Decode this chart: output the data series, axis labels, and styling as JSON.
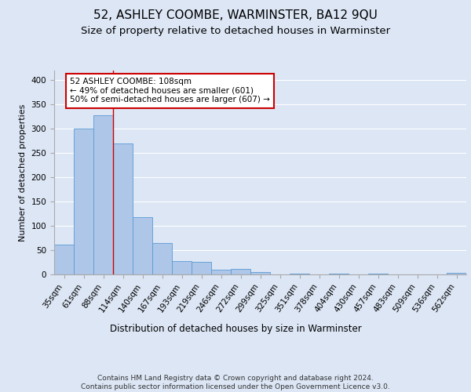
{
  "title": "52, ASHLEY COOMBE, WARMINSTER, BA12 9QU",
  "subtitle": "Size of property relative to detached houses in Warminster",
  "xlabel": "Distribution of detached houses by size in Warminster",
  "ylabel": "Number of detached properties",
  "categories": [
    "35sqm",
    "61sqm",
    "88sqm",
    "114sqm",
    "140sqm",
    "167sqm",
    "193sqm",
    "219sqm",
    "246sqm",
    "272sqm",
    "299sqm",
    "325sqm",
    "351sqm",
    "378sqm",
    "404sqm",
    "430sqm",
    "457sqm",
    "483sqm",
    "509sqm",
    "536sqm",
    "562sqm"
  ],
  "values": [
    62,
    301,
    328,
    270,
    118,
    65,
    28,
    26,
    10,
    12,
    5,
    0,
    2,
    0,
    2,
    0,
    2,
    0,
    0,
    0,
    3
  ],
  "bar_color": "#aec6e8",
  "bar_edge_color": "#5b9bd5",
  "vline_x": 2.5,
  "vline_color": "#cc0000",
  "annotation_text": "52 ASHLEY COOMBE: 108sqm\n← 49% of detached houses are smaller (601)\n50% of semi-detached houses are larger (607) →",
  "annotation_box_color": "#ffffff",
  "annotation_box_edge_color": "#cc0000",
  "ylim": [
    0,
    420
  ],
  "background_color": "#dce6f5",
  "plot_bg_color": "#dce6f5",
  "footer": "Contains HM Land Registry data © Crown copyright and database right 2024.\nContains public sector information licensed under the Open Government Licence v3.0.",
  "title_fontsize": 11,
  "subtitle_fontsize": 9.5,
  "xlabel_fontsize": 8.5,
  "ylabel_fontsize": 8,
  "tick_fontsize": 7.5,
  "annotation_fontsize": 7.5,
  "footer_fontsize": 6.5
}
